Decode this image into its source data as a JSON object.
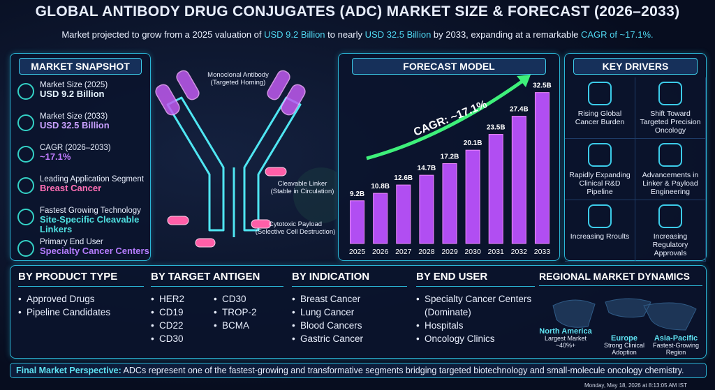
{
  "header": {
    "title": "GLOBAL ANTIBODY DRUG CONJUGATES (ADC) MARKET SIZE & FORECAST (2026–2033)",
    "subtitle": [
      "Market projected to grow from a 2025 valuation of ",
      "USD 9.2 Billion",
      " to nearly ",
      "USD 32.5 Billion",
      " by 2033, expanding at a remarkable ",
      "CAGR of ~17.1%."
    ]
  },
  "snapshot": {
    "title": "MARKET SNAPSHOT",
    "items": [
      {
        "label": "Market Size (2025)",
        "value": "USD 9.2 Billion"
      },
      {
        "label": "Market Size (2033)",
        "value": "USD 32.5 Billion"
      },
      {
        "label": "CAGR (2026–2033)",
        "value": "~17.1%"
      },
      {
        "label": "Leading Application Segment",
        "value": "Breast Cancer"
      },
      {
        "label": "Fastest Growing Technology",
        "value": "Site-Specific Cleavable Linkers"
      },
      {
        "label": "Primary End User",
        "value": "Specialty Cancer Centers"
      }
    ]
  },
  "illustration": {
    "labels": [
      {
        "name": "Monoclonal Antibody",
        "note": "(Targeted Homing)"
      },
      {
        "name": "Cleavable Linker",
        "note": "(Stable in Circulation)"
      },
      {
        "name": "Cytotoxic Payload",
        "note": "(Selective Cell Destruction)"
      }
    ]
  },
  "chart_data": {
    "type": "bar",
    "title": "FORECAST MODEL",
    "annotation": "CAGR: ~17.1%",
    "categories": [
      "2025",
      "2026",
      "2027",
      "2028",
      "2029",
      "2030",
      "2031",
      "2032",
      "2033"
    ],
    "values": [
      9.2,
      10.8,
      12.6,
      14.7,
      17.2,
      20.1,
      23.5,
      27.4,
      32.5
    ],
    "value_labels": [
      "9.2B",
      "10.8B",
      "12.6B",
      "14.7B",
      "17.2B",
      "20.1B",
      "23.5B",
      "27.4B",
      "32.5B"
    ],
    "color": "#b14ef2",
    "ylim": [
      0,
      35
    ]
  },
  "drivers": {
    "title": "KEY DRIVERS",
    "items": [
      "Rising Global Cancer Burden",
      "Shift Toward Targeted Precision Oncology",
      "Rapidly Expanding Clinical R&D Pipeline",
      "Advancements in Linker & Payload Engineering",
      "Increasing Rroults",
      "Increasing Regulatory Approvals"
    ]
  },
  "segments": [
    {
      "title": "BY PRODUCT TYPE",
      "items": [
        "Approved Drugs",
        "Pipeline Candidates"
      ]
    },
    {
      "title": "BY TARGET ANTIGEN",
      "items": [
        "HER2",
        "CD19",
        "CD22",
        "CD30",
        "CD30",
        "TROP-2",
        "BCMA"
      ]
    },
    {
      "title": "BY INDICATION",
      "items": [
        "Breast Cancer",
        "Lung Cancer",
        "Blood Cancers",
        "Gastric Cancer"
      ]
    },
    {
      "title": "BY END USER",
      "items": [
        "Specialty Cancer Centers (Dominate)",
        "Hospitals",
        "Oncology Clinics"
      ]
    }
  ],
  "regional": {
    "title": "REGIONAL MARKET DYNAMICS",
    "regions": [
      {
        "name": "North America",
        "note": [
          "Largest Market",
          "~40%+"
        ]
      },
      {
        "name": "Europe",
        "note": [
          "Strong Clinical",
          "Adoption"
        ]
      },
      {
        "name": "Asia-Pacific",
        "note": [
          "Fastest-Growing",
          "Region"
        ]
      }
    ]
  },
  "footer": {
    "label": "Final Market Perspective:",
    "text": " ADCs represent one of the fastest-growing and transformative segments bridging targeted biotechnology and small-molecule oncology chemistry."
  },
  "timestamp": "Monday, May 18, 2026 at 8:13:05 AM IST"
}
